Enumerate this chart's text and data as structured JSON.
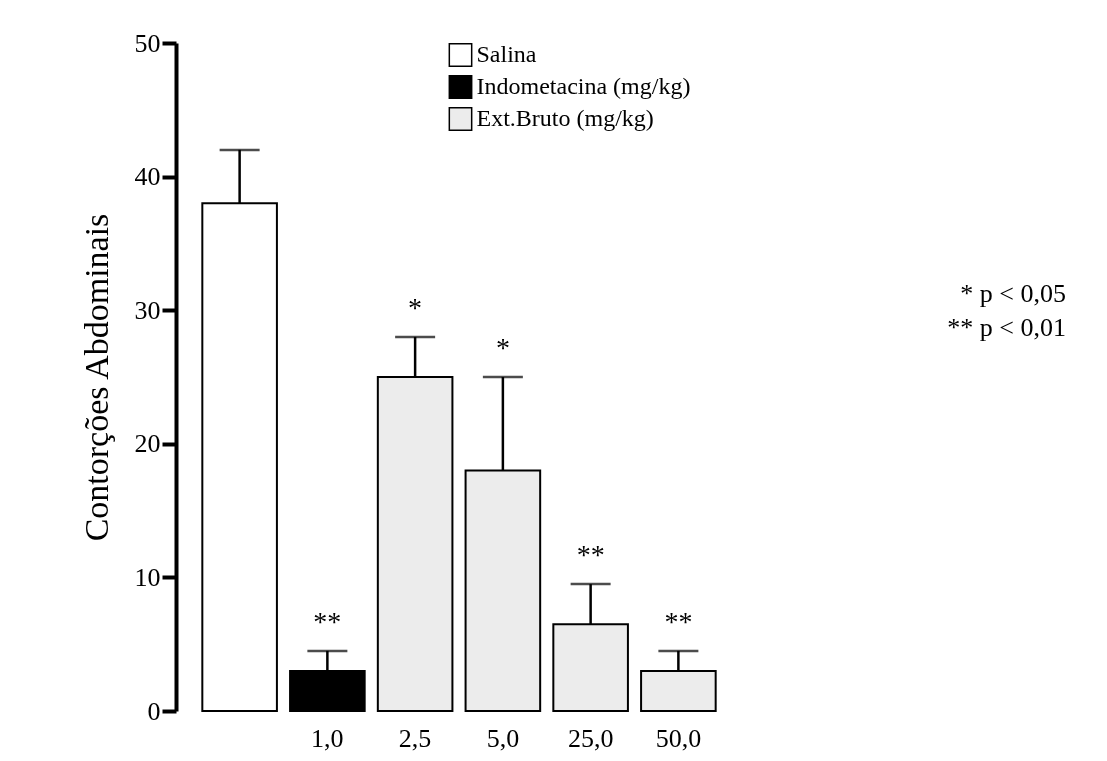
{
  "chart_data": {
    "type": "bar",
    "ylabel": "Contorções Abdominais",
    "categories": [
      null,
      "1,0",
      "2,5",
      "5,0",
      "25,0",
      "50,0"
    ],
    "series": [
      {
        "name": "Salina",
        "color": "#ffffff",
        "values": [
          38,
          null,
          null,
          null,
          null,
          null
        ],
        "errors": [
          4,
          null,
          null,
          null,
          null,
          null
        ]
      },
      {
        "name": "Indometacina (mg/kg)",
        "color": "#000000",
        "values": [
          null,
          3,
          null,
          null,
          null,
          null
        ],
        "errors": [
          null,
          1.5,
          null,
          null,
          null,
          null
        ]
      },
      {
        "name": "Ext.Bruto (mg/kg)",
        "color": "#ececec",
        "values": [
          null,
          null,
          25,
          18,
          6.5,
          3
        ],
        "errors": [
          null,
          null,
          3,
          7,
          3,
          1.5
        ]
      }
    ],
    "ylim": [
      0,
      50
    ],
    "yticks": [
      0,
      10,
      20,
      30,
      40,
      50
    ],
    "grid": false,
    "legend": "top",
    "annotations": [
      {
        "text": "**",
        "x": "1,0",
        "y": 4.5
      },
      {
        "text": "*",
        "x": "2,5",
        "y": 28
      },
      {
        "text": "*",
        "x": "5,0",
        "y": 25
      },
      {
        "text": "**",
        "x": "25,0",
        "y": 9.5
      },
      {
        "text": "**",
        "x": "50,0",
        "y": 4.5
      },
      "* p < 0,05",
      "** p < 0,01"
    ]
  }
}
